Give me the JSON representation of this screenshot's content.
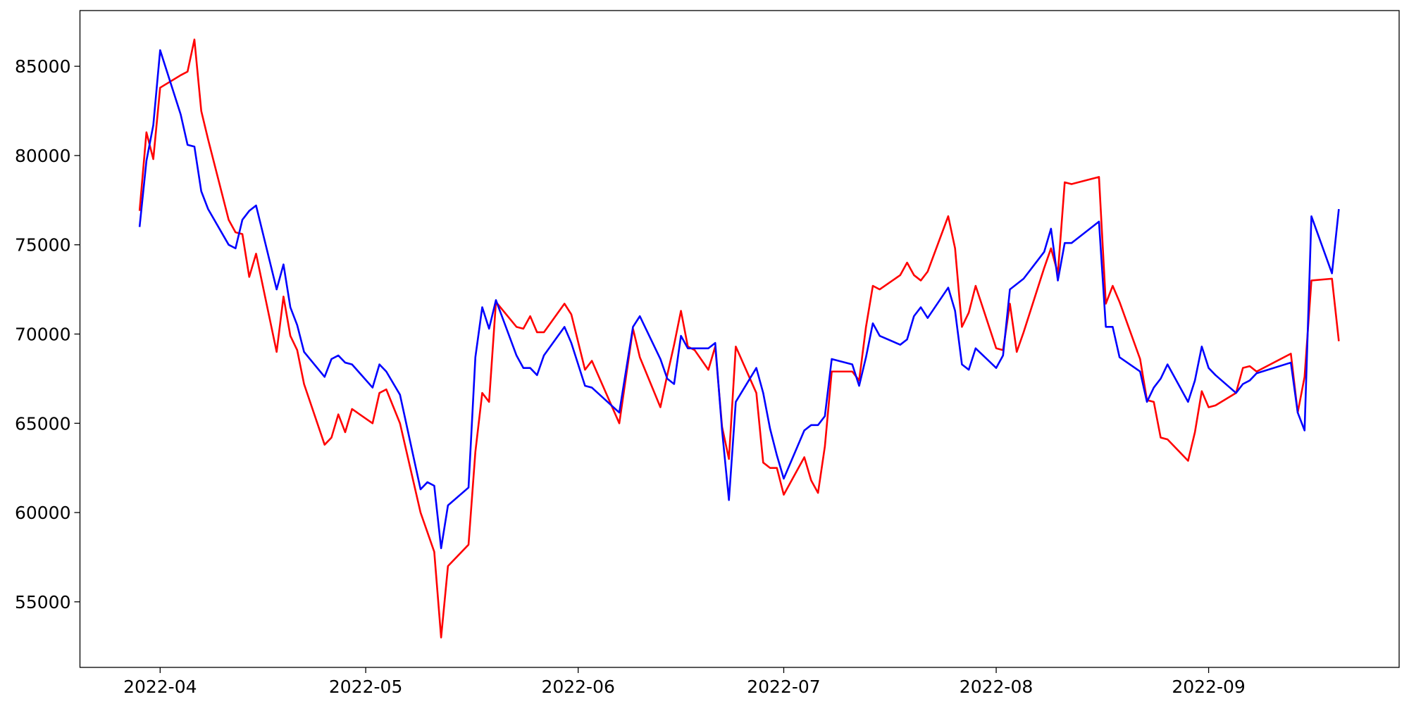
{
  "chart_data": {
    "type": "line",
    "x": [
      88,
      89,
      90,
      91,
      94,
      95,
      96,
      97,
      98,
      101,
      102,
      103,
      104,
      105,
      108,
      109,
      110,
      111,
      112,
      115,
      116,
      117,
      118,
      119,
      122,
      123,
      124,
      126,
      129,
      130,
      131,
      132,
      133,
      136,
      137,
      138,
      139,
      140,
      143,
      144,
      145,
      146,
      147,
      150,
      151,
      153,
      154,
      158,
      160,
      161,
      164,
      165,
      166,
      167,
      168,
      169,
      171,
      172,
      173,
      174,
      175,
      178,
      179,
      180,
      181,
      182,
      185,
      186,
      187,
      188,
      189,
      192,
      193,
      194,
      195,
      196,
      199,
      200,
      201,
      202,
      203,
      206,
      207,
      208,
      209,
      210,
      213,
      214,
      215,
      216,
      217,
      220,
      221,
      222,
      223,
      224,
      228,
      229,
      230,
      231,
      234,
      235,
      236,
      237,
      238,
      241,
      242,
      243,
      244,
      245,
      248,
      249,
      250,
      251,
      256,
      257,
      258,
      259,
      262,
      263
    ],
    "xlim": [
      79.3,
      271.8
    ],
    "xticks": [
      {
        "value": 91,
        "label": "2022-04"
      },
      {
        "value": 121,
        "label": "2022-05"
      },
      {
        "value": 152,
        "label": "2022-06"
      },
      {
        "value": 182,
        "label": "2022-07"
      },
      {
        "value": 213,
        "label": "2022-08"
      },
      {
        "value": 244,
        "label": "2022-09"
      }
    ],
    "ylim": [
      51326,
      88121
    ],
    "yticks": [
      55000,
      60000,
      65000,
      70000,
      75000,
      80000,
      85000
    ],
    "grid": false,
    "series": [
      {
        "color": "#ff0000",
        "values": [
          76900,
          81300,
          79800,
          83800,
          84500,
          84700,
          86500,
          82500,
          80900,
          76400,
          75700,
          75600,
          73200,
          74500,
          69000,
          72100,
          69900,
          69100,
          67200,
          63800,
          64200,
          65500,
          64500,
          65800,
          65000,
          66700,
          66900,
          65000,
          60000,
          58900,
          57800,
          53000,
          57000,
          58200,
          63400,
          66700,
          66200,
          71800,
          70400,
          70300,
          71000,
          70100,
          70100,
          71700,
          71100,
          68000,
          68500,
          65000,
          70300,
          68700,
          65900,
          67700,
          69400,
          71300,
          69300,
          69100,
          68000,
          69300,
          64800,
          63000,
          69300,
          66700,
          62800,
          62500,
          62500,
          61000,
          63100,
          61800,
          61100,
          63700,
          67900,
          67900,
          67400,
          70400,
          72700,
          72500,
          73300,
          74000,
          73300,
          73000,
          73500,
          76600,
          74800,
          70400,
          71200,
          72700,
          69200,
          69100,
          71700,
          69000,
          70100,
          73700,
          74800,
          73400,
          78500,
          78400,
          78800,
          71700,
          72700,
          71800,
          68600,
          66300,
          66200,
          64200,
          64100,
          62900,
          64500,
          66800,
          65900,
          66000,
          66700,
          68100,
          68200,
          67900,
          68900,
          65600,
          67600,
          73000,
          73100,
          69600
        ]
      },
      {
        "color": "#0000ff",
        "values": [
          76000,
          79700,
          81700,
          85900,
          82300,
          80600,
          80500,
          78000,
          77000,
          75000,
          74800,
          76400,
          76900,
          77200,
          72500,
          73900,
          71500,
          70500,
          69000,
          67600,
          68600,
          68800,
          68400,
          68300,
          67000,
          68300,
          67900,
          66600,
          61300,
          61700,
          61500,
          58000,
          60400,
          61400,
          68700,
          71500,
          70300,
          71900,
          68800,
          68100,
          68100,
          67700,
          68800,
          70400,
          69500,
          67100,
          67000,
          65600,
          70400,
          71000,
          68600,
          67500,
          67200,
          69900,
          69200,
          69200,
          69200,
          69500,
          64600,
          60700,
          66200,
          68100,
          66700,
          64700,
          63200,
          61900,
          64600,
          64900,
          64900,
          65400,
          68600,
          68300,
          67100,
          68700,
          70600,
          69900,
          69400,
          69700,
          71000,
          71500,
          70900,
          72600,
          71300,
          68300,
          68000,
          69200,
          68100,
          68800,
          72500,
          72800,
          73100,
          74600,
          75900,
          73000,
          75100,
          75100,
          76300,
          70400,
          70400,
          68700,
          67900,
          66200,
          67000,
          67500,
          68300,
          66200,
          67400,
          69300,
          68100,
          67700,
          66700,
          67200,
          67400,
          67800,
          68400,
          65600,
          64600,
          76600,
          73400,
          77000
        ]
      }
    ]
  }
}
